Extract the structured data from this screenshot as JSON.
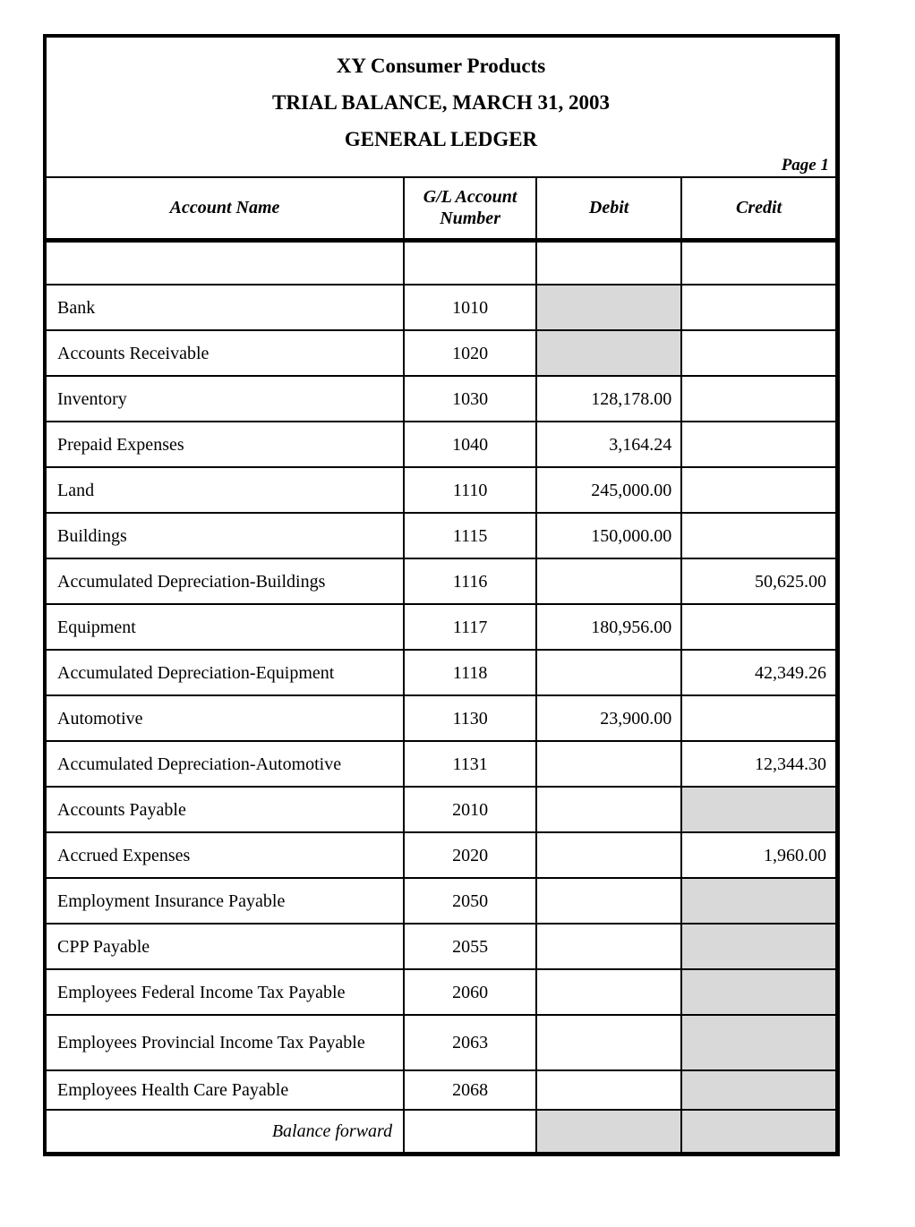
{
  "document": {
    "company": "XY Consumer Products",
    "report_title": "TRIAL BALANCE, MARCH 31, 2003",
    "ledger_title": "GENERAL LEDGER",
    "page_label": "Page 1"
  },
  "table": {
    "columns": [
      "Account Name",
      "G/L Account Number",
      "Debit",
      "Credit"
    ],
    "rows": [
      {
        "name": "",
        "number": "",
        "debit": "",
        "credit": "",
        "debit_shaded": false,
        "credit_shaded": false,
        "size": "blank"
      },
      {
        "name": "Bank",
        "number": "1010",
        "debit": "",
        "credit": "",
        "debit_shaded": true,
        "credit_shaded": false
      },
      {
        "name": "Accounts Receivable",
        "number": "1020",
        "debit": "",
        "credit": "",
        "debit_shaded": true,
        "credit_shaded": false
      },
      {
        "name": "Inventory",
        "number": "1030",
        "debit": "128,178.00",
        "credit": "",
        "debit_shaded": false,
        "credit_shaded": false
      },
      {
        "name": "Prepaid Expenses",
        "number": "1040",
        "debit": "3,164.24",
        "credit": "",
        "debit_shaded": false,
        "credit_shaded": false
      },
      {
        "name": "Land",
        "number": "1110",
        "debit": "245,000.00",
        "credit": "",
        "debit_shaded": false,
        "credit_shaded": false
      },
      {
        "name": "Buildings",
        "number": "1115",
        "debit": "150,000.00",
        "credit": "",
        "debit_shaded": false,
        "credit_shaded": false
      },
      {
        "name": "Accumulated Depreciation-Buildings",
        "number": "1116",
        "debit": "",
        "credit": "50,625.00",
        "debit_shaded": false,
        "credit_shaded": false
      },
      {
        "name": "Equipment",
        "number": "1117",
        "debit": "180,956.00",
        "credit": "",
        "debit_shaded": false,
        "credit_shaded": false
      },
      {
        "name": "Accumulated Depreciation-Equipment",
        "number": "1118",
        "debit": "",
        "credit": "42,349.26",
        "debit_shaded": false,
        "credit_shaded": false
      },
      {
        "name": "Automotive",
        "number": "1130",
        "debit": "23,900.00",
        "credit": "",
        "debit_shaded": false,
        "credit_shaded": false
      },
      {
        "name": "Accumulated Depreciation-Automotive",
        "number": "1131",
        "debit": "",
        "credit": "12,344.30",
        "debit_shaded": false,
        "credit_shaded": false
      },
      {
        "name": "Accounts Payable",
        "number": "2010",
        "debit": "",
        "credit": "",
        "debit_shaded": false,
        "credit_shaded": true
      },
      {
        "name": "Accrued Expenses",
        "number": "2020",
        "debit": "",
        "credit": "1,960.00",
        "debit_shaded": false,
        "credit_shaded": false
      },
      {
        "name": "Employment Insurance Payable",
        "number": "2050",
        "debit": "",
        "credit": "",
        "debit_shaded": false,
        "credit_shaded": true
      },
      {
        "name": "CPP Payable",
        "number": "2055",
        "debit": "",
        "credit": "",
        "debit_shaded": false,
        "credit_shaded": true
      },
      {
        "name": "Employees Federal Income Tax Payable",
        "number": "2060",
        "debit": "",
        "credit": "",
        "debit_shaded": false,
        "credit_shaded": true
      },
      {
        "name": "Employees Provincial Income Tax Payable",
        "number": "2063",
        "debit": "",
        "credit": "",
        "debit_shaded": false,
        "credit_shaded": true,
        "size": "tall"
      },
      {
        "name": "Employees Health Care Payable",
        "number": "2068",
        "debit": "",
        "credit": "",
        "debit_shaded": false,
        "credit_shaded": true,
        "size": "compact"
      },
      {
        "name": "Balance forward",
        "number": "",
        "debit": "",
        "credit": "",
        "debit_shaded": true,
        "credit_shaded": true,
        "size": "footer",
        "label_style": "balance"
      }
    ]
  },
  "colors": {
    "background": "#ffffff",
    "border": "#000000",
    "shaded_cell": "#d9d9d9",
    "text": "#000000"
  }
}
